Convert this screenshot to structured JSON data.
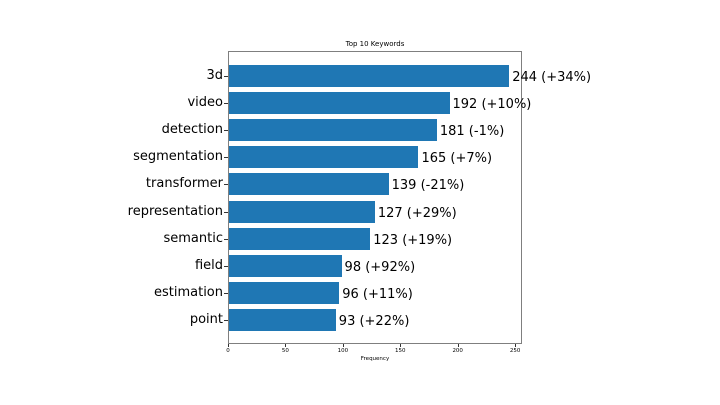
{
  "chart_data": {
    "type": "bar",
    "orientation": "horizontal",
    "title": "Top 10 Keywords",
    "xlabel": "Frequency",
    "ylabel": "",
    "xlim": [
      0,
      256
    ],
    "xticks": [
      0,
      50,
      100,
      150,
      200,
      250
    ],
    "grid": false,
    "legend": null,
    "color": "#1f77b4",
    "categories": [
      "3d",
      "video",
      "detection",
      "segmentation",
      "transformer",
      "representation",
      "semantic",
      "field",
      "estimation",
      "point"
    ],
    "values": [
      244,
      192,
      181,
      165,
      139,
      127,
      123,
      98,
      96,
      93
    ],
    "annotations": [
      "244 (+34%)",
      "192 (+10%)",
      "181 (-1%)",
      "165 (+7%)",
      "139 (-21%)",
      "127 (+29%)",
      "123 (+19%)",
      "98 (+92%)",
      "96 (+11%)",
      "93 (+22%)"
    ],
    "change_pct": [
      34,
      10,
      -1,
      7,
      -21,
      29,
      19,
      92,
      11,
      22
    ]
  }
}
